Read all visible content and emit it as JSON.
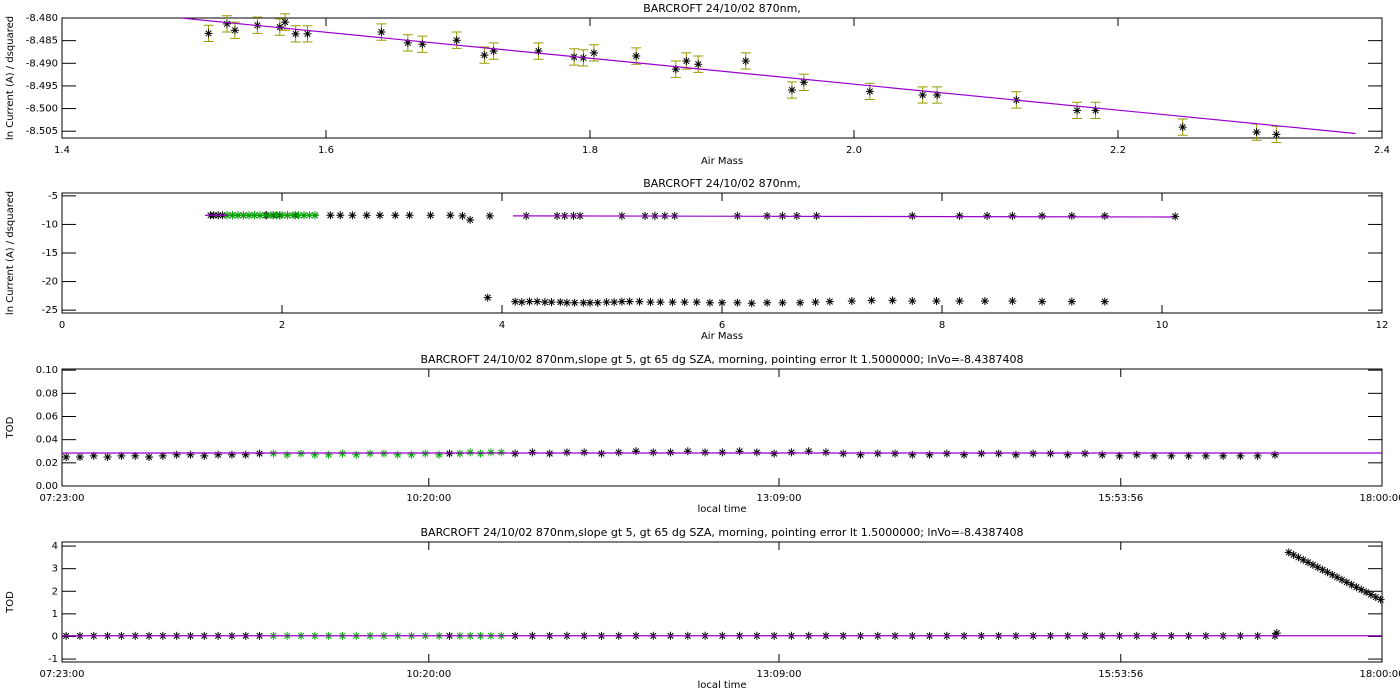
{
  "chart_data": [
    {
      "type": "scatter",
      "title": "BARCROFT 24/10/02 870nm,",
      "xlabel": "Air Mass",
      "ylabel": "ln Current (A) / dsquared",
      "xlim": [
        1.4,
        2.4
      ],
      "xticks": [
        1.4,
        1.6,
        1.8,
        {
          "value": 2,
          "label": "2.0"
        },
        2.2,
        2.4
      ],
      "ylim": [
        -8.5065,
        -8.48
      ],
      "yticks": [
        {
          "value": -8.48,
          "label": "-8.480"
        },
        {
          "value": -8.485,
          "label": "-8.485"
        },
        {
          "value": -8.49,
          "label": "-8.490"
        },
        {
          "value": -8.495,
          "label": "-8.495"
        },
        {
          "value": -8.5,
          "label": "-8.500"
        },
        {
          "value": -8.505,
          "label": "-8.505"
        }
      ],
      "series": [
        {
          "color": "#000000",
          "error_color": "#999900",
          "style": "asterisk",
          "x": [
            1.511,
            1.525,
            1.531,
            1.548,
            1.565,
            1.569,
            1.577,
            1.586,
            1.642,
            1.662,
            1.673,
            1.699,
            1.72,
            1.727,
            1.761,
            1.788,
            1.795,
            1.803,
            1.835,
            1.865,
            1.873,
            1.882,
            1.918,
            1.953,
            1.962,
            2.012,
            2.052,
            2.063,
            2.123,
            2.169,
            2.183,
            2.249,
            2.305,
            2.32
          ],
          "values": [
            -8.4834,
            -8.4813,
            -8.4827,
            -8.4816,
            -8.482,
            -8.4809,
            -8.4835,
            -8.4835,
            -8.4831,
            -8.4855,
            -8.4858,
            -8.4849,
            -8.4882,
            -8.4873,
            -8.4873,
            -8.4886,
            -8.4888,
            -8.4877,
            -8.4884,
            -8.4913,
            -8.4895,
            -8.4902,
            -8.4895,
            -8.4959,
            -8.4942,
            -8.4962,
            -8.497,
            -8.497,
            -8.4981,
            -8.5004,
            -8.5004,
            -8.5041,
            -8.5052,
            -8.5057
          ],
          "errors": [
            0.0018,
            0.0018,
            0.0018,
            0.0018,
            0.0018,
            0.0018,
            0.0018,
            0.0018,
            0.0018,
            0.0018,
            0.0018,
            0.0018,
            0.0018,
            0.0018,
            0.0018,
            0.0018,
            0.0018,
            0.0018,
            0.0018,
            0.0018,
            0.0018,
            0.0018,
            0.0018,
            0.0018,
            0.0018,
            0.0018,
            0.0018,
            0.0018,
            0.0018,
            0.0018,
            0.0018,
            0.0018,
            0.0018,
            0.0018
          ]
        },
        {
          "color": "#9900cc",
          "style": "line",
          "x": [
            1.49,
            2.38
          ],
          "values": [
            -8.48,
            -8.5055
          ]
        }
      ]
    },
    {
      "type": "scatter",
      "title": "BARCROFT 24/10/02 870nm,",
      "xlabel": "Air Mass",
      "ylabel": "ln Current (A) / dsquared",
      "xlim": [
        0,
        12
      ],
      "xticks": [
        0,
        2,
        4,
        6,
        8,
        10,
        12
      ],
      "ylim": [
        -25.5,
        -4.5
      ],
      "yticks": [
        -5,
        -10,
        -15,
        -20,
        -25
      ],
      "series": [
        {
          "color": "#000000",
          "style": "asterisk",
          "x": [
            1.35,
            1.38,
            1.42,
            1.46,
            1.5,
            1.55,
            1.6,
            1.65,
            1.7,
            1.75,
            1.8,
            1.86,
            1.92,
            1.98,
            2.05,
            2.12,
            2.2,
            2.3,
            2.44,
            2.53,
            2.64,
            2.77,
            2.89,
            3.03,
            3.16,
            3.35,
            3.53,
            3.64,
            3.71,
            3.89,
            4.22,
            4.5,
            4.57,
            4.65,
            4.71,
            5.09,
            5.3,
            5.39,
            5.48,
            5.57,
            6.14,
            6.41,
            6.55,
            6.68,
            6.86,
            7.73,
            8.16,
            8.41,
            8.64,
            8.91,
            9.18,
            9.48,
            10.12,
            3.87,
            4.12,
            4.18,
            4.25,
            4.32,
            4.39,
            4.45,
            4.53,
            4.59,
            4.66,
            4.74,
            4.8,
            4.87,
            4.95,
            5.02,
            5.09,
            5.16,
            5.25,
            5.35,
            5.44,
            5.55,
            5.66,
            5.77,
            5.89,
            6.0,
            6.14,
            6.27,
            6.41,
            6.55,
            6.71,
            6.85,
            6.98,
            7.18,
            7.36,
            7.55,
            7.73,
            7.95,
            8.16,
            8.39,
            8.64,
            8.91,
            9.18,
            9.48
          ],
          "values": [
            -8.4,
            -8.4,
            -8.4,
            -8.4,
            -8.4,
            -8.4,
            -8.4,
            -8.4,
            -8.4,
            -8.4,
            -8.4,
            -8.4,
            -8.4,
            -8.4,
            -8.4,
            -8.4,
            -8.4,
            -8.4,
            -8.4,
            -8.4,
            -8.4,
            -8.4,
            -8.4,
            -8.4,
            -8.4,
            -8.4,
            -8.4,
            -8.5,
            -9.2,
            -8.5,
            -8.5,
            -8.5,
            -8.5,
            -8.5,
            -8.5,
            -8.5,
            -8.5,
            -8.5,
            -8.5,
            -8.5,
            -8.5,
            -8.5,
            -8.5,
            -8.5,
            -8.5,
            -8.5,
            -8.5,
            -8.5,
            -8.5,
            -8.5,
            -8.5,
            -8.5,
            -8.6,
            -22.8,
            -23.5,
            -23.6,
            -23.5,
            -23.5,
            -23.6,
            -23.6,
            -23.6,
            -23.7,
            -23.7,
            -23.7,
            -23.7,
            -23.7,
            -23.6,
            -23.6,
            -23.5,
            -23.5,
            -23.5,
            -23.6,
            -23.6,
            -23.6,
            -23.6,
            -23.6,
            -23.7,
            -23.7,
            -23.7,
            -23.8,
            -23.7,
            -23.7,
            -23.7,
            -23.6,
            -23.5,
            -23.4,
            -23.3,
            -23.3,
            -23.4,
            -23.4,
            -23.4,
            -23.4,
            -23.4,
            -23.5,
            -23.5,
            -23.5
          ]
        },
        {
          "color": "#00aa00",
          "style": "asterisk",
          "x": [
            1.5,
            1.55,
            1.6,
            1.65,
            1.7,
            1.75,
            1.8,
            1.85,
            1.9,
            1.95,
            2.0,
            2.05,
            2.1,
            2.15,
            2.2,
            2.25,
            2.3
          ],
          "values": [
            -8.4,
            -8.4,
            -8.4,
            -8.4,
            -8.4,
            -8.4,
            -8.4,
            -8.4,
            -8.4,
            -8.4,
            -8.4,
            -8.4,
            -8.4,
            -8.4,
            -8.4,
            -8.4,
            -8.4
          ]
        },
        {
          "color": "#9900cc",
          "style": "line",
          "x": [
            1.3,
            1.5,
            3.9,
            4.1,
            10.1
          ],
          "values": [
            -8.4,
            -8.4,
            null,
            -8.5,
            -8.7
          ]
        }
      ]
    },
    {
      "type": "scatter",
      "title": "BARCROFT 24/10/02 870nm,slope gt 5, gt 65 dg SZA, morning, pointing error lt 1.5000000; lnVo=-8.4387408",
      "xlabel": "local time",
      "ylabel": "TOD",
      "xlim": [
        26580,
        64800
      ],
      "xticks": [
        {
          "value": 26580,
          "label": "07:23:00"
        },
        {
          "value": 37200,
          "label": "10:20:00"
        },
        {
          "value": 47340,
          "label": "13:09:00"
        },
        {
          "value": 57236,
          "label": "15:53:56"
        },
        {
          "value": 64800,
          "label": "18:00:00"
        }
      ],
      "ylim": [
        0,
        0.101
      ],
      "yticks": [
        {
          "value": 0,
          "label": "0.00"
        },
        {
          "value": 0.02,
          "label": "0.02"
        },
        {
          "value": 0.04,
          "label": "0.04"
        },
        {
          "value": 0.06,
          "label": "0.06"
        },
        {
          "value": 0.08,
          "label": "0.08"
        },
        {
          "value": 0.1,
          "label": "0.10"
        }
      ],
      "series": [
        {
          "color": "#000000",
          "style": "asterisk",
          "x": [
            26700,
            27100,
            27500,
            27900,
            28300,
            28700,
            29100,
            29500,
            29900,
            30300,
            30700,
            31100,
            31500,
            31900,
            32300,
            37800,
            39700,
            40200,
            40700,
            41200,
            41700,
            42200,
            42700,
            43200,
            43700,
            44200,
            44700,
            45200,
            45700,
            46200,
            46700,
            47200,
            47700,
            48200,
            48700,
            49200,
            49700,
            50200,
            50700,
            51200,
            51700,
            52200,
            52700,
            53200,
            53700,
            54200,
            54700,
            55200,
            55700,
            56200,
            56700,
            57200,
            57700,
            58200,
            58700,
            59200,
            59700,
            60200,
            60700,
            61200,
            61700
          ],
          "values": [
            0.025,
            0.025,
            0.026,
            0.025,
            0.026,
            0.026,
            0.025,
            0.026,
            0.027,
            0.027,
            0.026,
            0.027,
            0.027,
            0.027,
            0.028,
            0.028,
            0.028,
            0.029,
            0.028,
            0.029,
            0.029,
            0.028,
            0.029,
            0.03,
            0.029,
            0.029,
            0.03,
            0.029,
            0.029,
            0.03,
            0.029,
            0.028,
            0.029,
            0.03,
            0.029,
            0.028,
            0.027,
            0.028,
            0.028,
            0.027,
            0.027,
            0.028,
            0.027,
            0.028,
            0.028,
            0.027,
            0.028,
            0.028,
            0.027,
            0.028,
            0.027,
            0.026,
            0.027,
            0.026,
            0.026,
            0.026,
            0.026,
            0.026,
            0.026,
            0.026,
            0.027
          ]
        },
        {
          "color": "#00aa00",
          "style": "asterisk",
          "x": [
            32700,
            33100,
            33500,
            33900,
            34300,
            34700,
            35100,
            35500,
            35900,
            36300,
            36700,
            37100,
            37500,
            38100,
            38400,
            38700,
            39000,
            39300
          ],
          "values": [
            0.028,
            0.027,
            0.028,
            0.027,
            0.027,
            0.028,
            0.027,
            0.028,
            0.028,
            0.027,
            0.027,
            0.028,
            0.027,
            0.028,
            0.029,
            0.028,
            0.029,
            0.029
          ]
        },
        {
          "color": "#9900cc",
          "style": "line",
          "x": [
            26580,
            64800
          ],
          "values": [
            0.0285,
            0.0285
          ]
        }
      ]
    },
    {
      "type": "scatter",
      "title": "BARCROFT 24/10/02 870nm,slope gt 5, gt 65 dg SZA, morning, pointing error lt 1.5000000; lnVo=-8.4387408",
      "xlabel": "local time",
      "ylabel": "TOD",
      "xlim": [
        26580,
        64800
      ],
      "xticks": [
        {
          "value": 26580,
          "label": "07:23:00"
        },
        {
          "value": 37200,
          "label": "10:20:00"
        },
        {
          "value": 47340,
          "label": "13:09:00"
        },
        {
          "value": 57236,
          "label": "15:53:56"
        },
        {
          "value": 64800,
          "label": "18:00:00"
        }
      ],
      "ylim": [
        -1.13,
        4.18
      ],
      "yticks": [
        -1,
        0,
        1,
        2,
        3,
        4
      ],
      "series": [
        {
          "color": "#000000",
          "style": "asterisk",
          "x": [
            26700,
            27100,
            27500,
            27900,
            28300,
            28700,
            29100,
            29500,
            29900,
            30300,
            30700,
            31100,
            31500,
            31900,
            32300,
            37800,
            39700,
            40200,
            40700,
            41200,
            41700,
            42200,
            42700,
            43200,
            43700,
            44200,
            44700,
            45200,
            45700,
            46200,
            46700,
            47200,
            47700,
            48200,
            48700,
            49200,
            49700,
            50200,
            50700,
            51200,
            51700,
            52200,
            52700,
            53200,
            53700,
            54200,
            54700,
            55200,
            55700,
            56200,
            56700,
            57200,
            57700,
            58200,
            58700,
            59200,
            59700,
            60200,
            60700,
            61200,
            61700
          ],
          "values": [
            0.025,
            0.025,
            0.026,
            0.025,
            0.026,
            0.026,
            0.025,
            0.026,
            0.027,
            0.027,
            0.026,
            0.027,
            0.027,
            0.027,
            0.028,
            0.028,
            0.028,
            0.029,
            0.028,
            0.029,
            0.029,
            0.028,
            0.029,
            0.03,
            0.029,
            0.029,
            0.03,
            0.029,
            0.029,
            0.03,
            0.029,
            0.028,
            0.029,
            0.03,
            0.029,
            0.028,
            0.027,
            0.028,
            0.028,
            0.027,
            0.027,
            0.028,
            0.027,
            0.028,
            0.028,
            0.027,
            0.028,
            0.028,
            0.027,
            0.028,
            0.027,
            0.026,
            0.027,
            0.026,
            0.026,
            0.026,
            0.026,
            0.026,
            0.026,
            0.026,
            0.027
          ]
        },
        {
          "color": "#00aa00",
          "style": "asterisk",
          "x": [
            32700,
            33100,
            33500,
            33900,
            34300,
            34700,
            35100,
            35500,
            35900,
            36300,
            36700,
            37100,
            37500,
            38100,
            38400,
            38700,
            39000,
            39300
          ],
          "values": [
            0.028,
            0.027,
            0.028,
            0.027,
            0.027,
            0.028,
            0.027,
            0.028,
            0.028,
            0.027,
            0.027,
            0.028,
            0.027,
            0.028,
            0.029,
            0.028,
            0.029,
            0.029
          ]
        },
        {
          "color": "#000000",
          "style": "asterisk",
          "x": [
            61754,
            62100,
            62240,
            62380,
            62520,
            62660,
            62800,
            62940,
            63080,
            63220,
            63360,
            63500,
            63640,
            63780,
            63920,
            64060,
            64200,
            64340,
            64480,
            64620,
            64760
          ],
          "values": [
            0.15,
            3.72,
            3.61,
            3.5,
            3.39,
            3.28,
            3.17,
            3.06,
            2.95,
            2.84,
            2.73,
            2.62,
            2.51,
            2.4,
            2.29,
            2.18,
            2.07,
            1.96,
            1.85,
            1.74,
            1.63
          ]
        },
        {
          "color": "#9900cc",
          "style": "line",
          "x": [
            26580,
            64800
          ],
          "values": [
            0.03,
            0.03
          ]
        }
      ]
    }
  ]
}
